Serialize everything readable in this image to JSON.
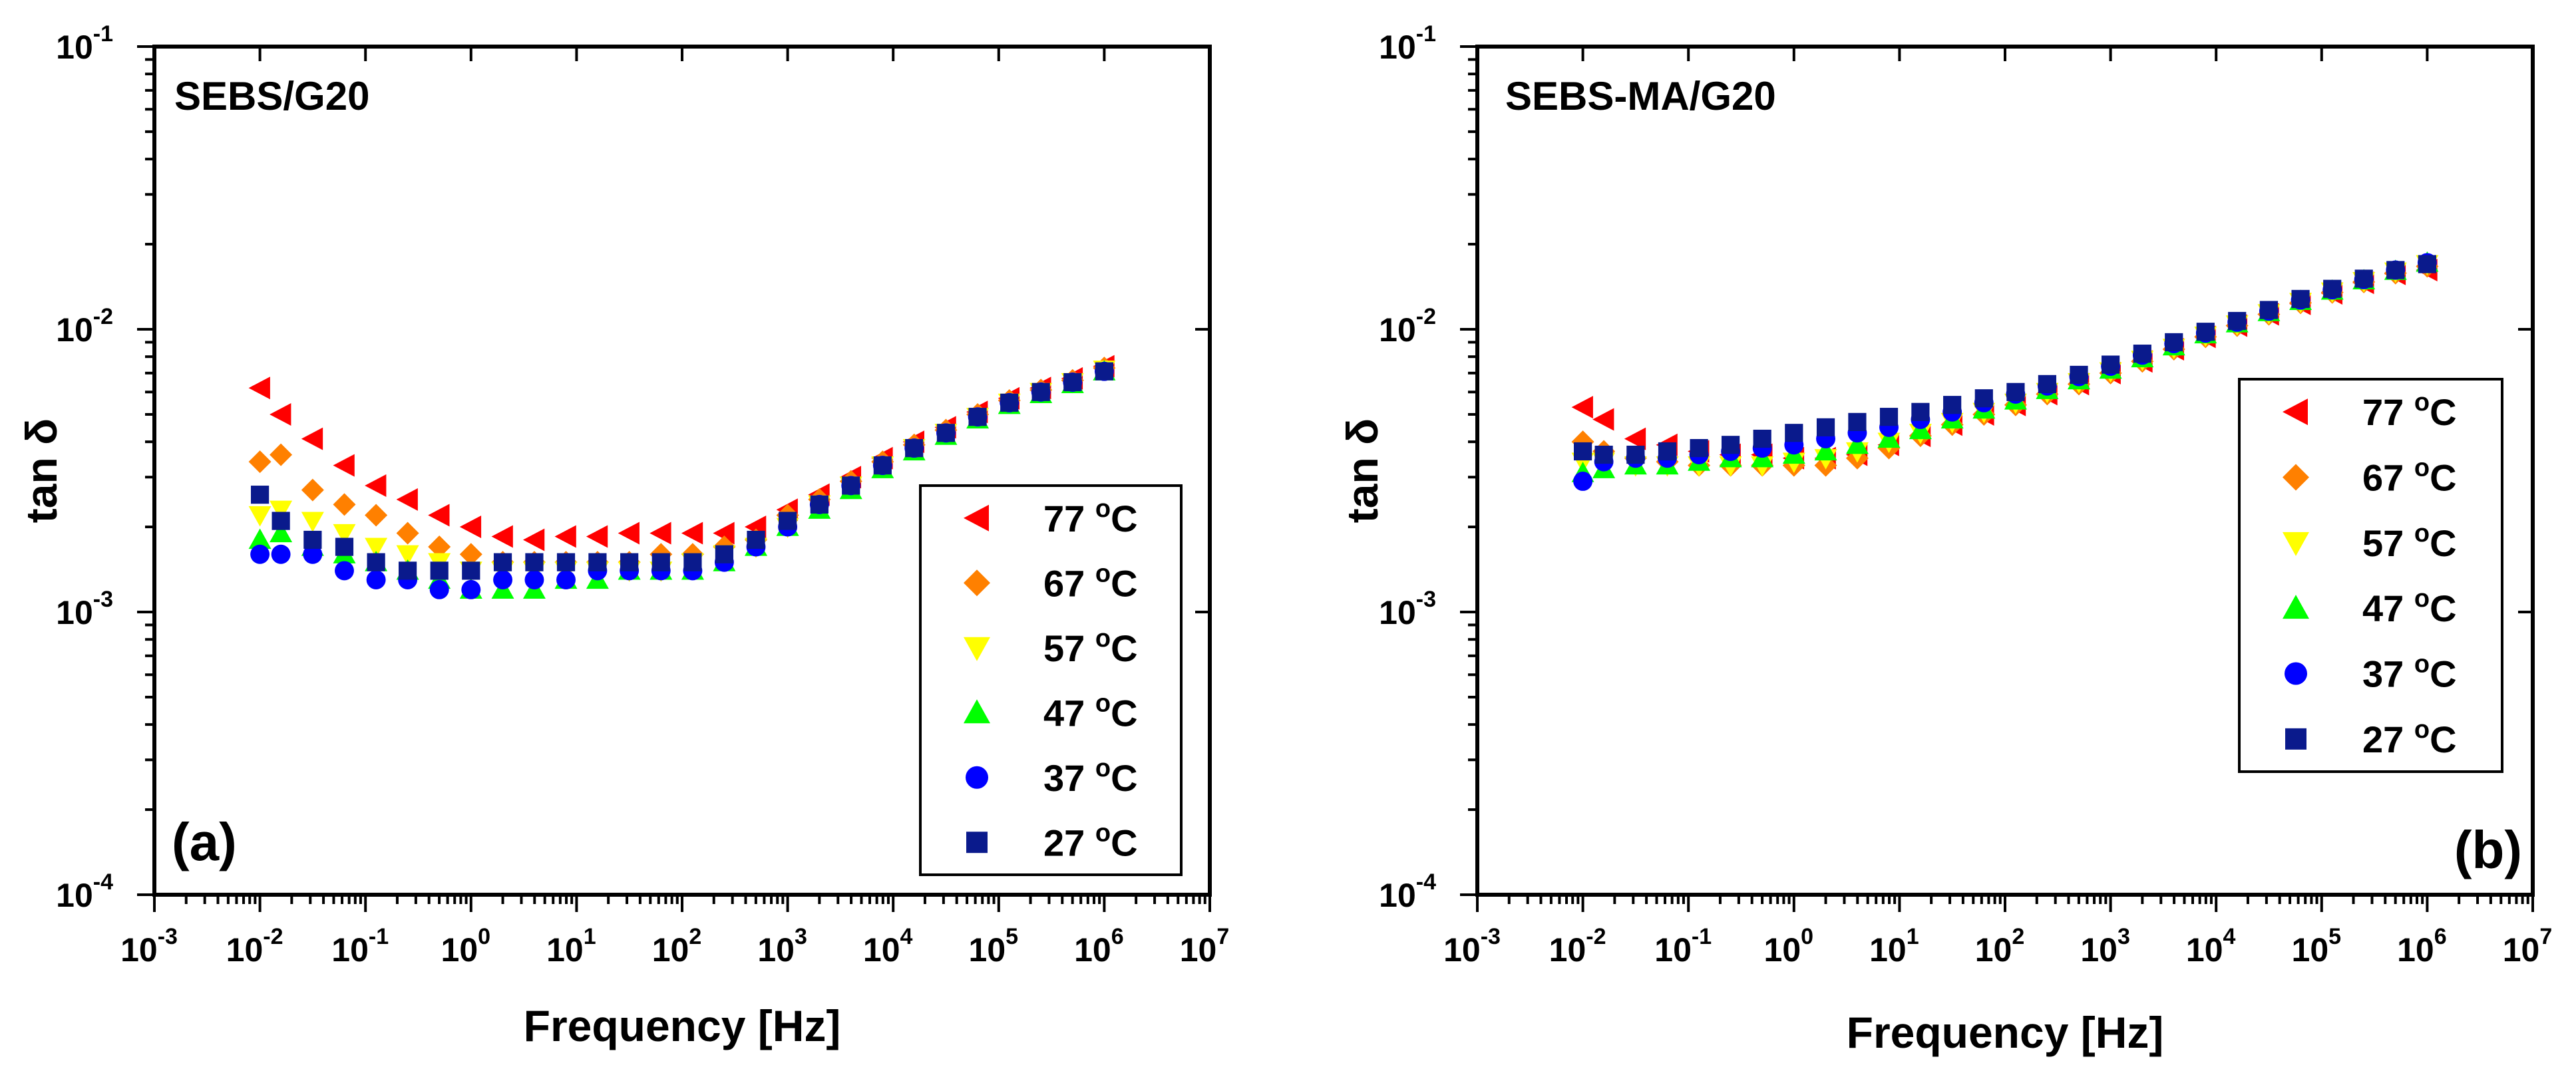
{
  "chart_data": [
    {
      "type": "scatter",
      "title": "SEBS/G20",
      "panel_label": "(a)",
      "xlabel": "Frequency [Hz]",
      "ylabel": "tan δ",
      "x_scale": "log",
      "y_scale": "log",
      "xlim": [
        0.001,
        10000000
      ],
      "ylim": [
        0.0001,
        0.1
      ],
      "x_ticks": [
        {
          "base": "10",
          "exp": "-3"
        },
        {
          "base": "10",
          "exp": "-2"
        },
        {
          "base": "10",
          "exp": "-1"
        },
        {
          "base": "10",
          "exp": "0"
        },
        {
          "base": "10",
          "exp": "1"
        },
        {
          "base": "10",
          "exp": "2"
        },
        {
          "base": "10",
          "exp": "3"
        },
        {
          "base": "10",
          "exp": "4"
        },
        {
          "base": "10",
          "exp": "5"
        },
        {
          "base": "10",
          "exp": "6"
        },
        {
          "base": "10",
          "exp": "7"
        }
      ],
      "y_ticks": [
        {
          "base": "10",
          "exp": "-4"
        },
        {
          "base": "10",
          "exp": "-3"
        },
        {
          "base": "10",
          "exp": "-2"
        },
        {
          "base": "10",
          "exp": "-1"
        }
      ],
      "legend_position": "bottom-right",
      "series": [
        {
          "name": "77 °C",
          "temp": "77",
          "unit": "°C",
          "color": "#ff0000",
          "marker": "triangle-left",
          "x": [
            0.01,
            0.0158,
            0.0316,
            0.0631,
            0.126,
            0.251,
            0.501,
            1,
            2,
            3.98,
            7.94,
            15.8,
            31.6,
            63.1,
            126,
            251,
            501,
            1000,
            2000,
            3980,
            7940,
            15800,
            31600,
            63100,
            126000,
            251000,
            501000,
            1000000
          ],
          "y": [
            0.0062,
            0.005,
            0.0041,
            0.0033,
            0.0028,
            0.0025,
            0.0022,
            0.002,
            0.00185,
            0.0018,
            0.00185,
            0.00185,
            0.0019,
            0.0019,
            0.0019,
            0.0019,
            0.002,
            0.0023,
            0.0026,
            0.003,
            0.0035,
            0.004,
            0.0045,
            0.0051,
            0.0057,
            0.0062,
            0.0067,
            0.0074
          ]
        },
        {
          "name": "67 °C",
          "temp": "67",
          "unit": "°C",
          "color": "#ff8000",
          "marker": "diamond",
          "x": [
            0.01,
            0.0158,
            0.0316,
            0.0631,
            0.126,
            0.251,
            0.501,
            1,
            2,
            3.98,
            7.94,
            15.8,
            31.6,
            63.1,
            126,
            251,
            501,
            1000,
            2000,
            3980,
            7940,
            15800,
            31600,
            63100,
            126000,
            251000,
            501000,
            1000000
          ],
          "y": [
            0.0034,
            0.0036,
            0.0027,
            0.0024,
            0.0022,
            0.0019,
            0.0017,
            0.0016,
            0.0015,
            0.0015,
            0.0015,
            0.0015,
            0.0015,
            0.0016,
            0.0016,
            0.0017,
            0.0018,
            0.0022,
            0.0025,
            0.0029,
            0.0034,
            0.0039,
            0.0044,
            0.005,
            0.0056,
            0.0061,
            0.0066,
            0.0073
          ]
        },
        {
          "name": "57 °C",
          "temp": "57",
          "unit": "°C",
          "color": "#ffff00",
          "marker": "triangle-down",
          "x": [
            0.01,
            0.0158,
            0.0316,
            0.0631,
            0.126,
            0.251,
            0.501,
            1,
            2,
            3.98,
            7.94,
            15.8,
            31.6,
            63.1,
            126,
            251,
            501,
            1000,
            2000,
            3980,
            7940,
            15800,
            31600,
            63100,
            126000,
            251000,
            501000,
            1000000
          ],
          "y": [
            0.0022,
            0.0023,
            0.0021,
            0.0019,
            0.0017,
            0.0016,
            0.0015,
            0.0014,
            0.0014,
            0.0014,
            0.0014,
            0.0014,
            0.0014,
            0.0014,
            0.0015,
            0.0016,
            0.0017,
            0.002,
            0.0024,
            0.0028,
            0.0033,
            0.0038,
            0.0043,
            0.0049,
            0.0055,
            0.006,
            0.0065,
            0.0072
          ]
        },
        {
          "name": "47 °C",
          "temp": "47",
          "unit": "°C",
          "color": "#00ff00",
          "marker": "triangle-up",
          "x": [
            0.01,
            0.0158,
            0.0316,
            0.0631,
            0.126,
            0.251,
            0.501,
            1,
            2,
            3.98,
            7.94,
            15.8,
            31.6,
            63.1,
            126,
            251,
            501,
            1000,
            2000,
            3980,
            7940,
            15800,
            31600,
            63100,
            126000,
            251000,
            501000,
            1000000
          ],
          "y": [
            0.0018,
            0.0019,
            0.0017,
            0.0016,
            0.0015,
            0.0014,
            0.0013,
            0.0012,
            0.0012,
            0.0012,
            0.0013,
            0.0013,
            0.0014,
            0.0014,
            0.0014,
            0.0015,
            0.0017,
            0.002,
            0.0023,
            0.0027,
            0.0032,
            0.0037,
            0.0042,
            0.0048,
            0.0054,
            0.0059,
            0.0064,
            0.0071
          ]
        },
        {
          "name": "37 °C",
          "temp": "37",
          "unit": "°C",
          "color": "#0000ff",
          "marker": "circle",
          "x": [
            0.01,
            0.0158,
            0.0316,
            0.0631,
            0.126,
            0.251,
            0.501,
            1,
            2,
            3.98,
            7.94,
            15.8,
            31.6,
            63.1,
            126,
            251,
            501,
            1000,
            2000,
            3980,
            7940,
            15800,
            31600,
            63100,
            126000,
            251000,
            501000,
            1000000
          ],
          "y": [
            0.0016,
            0.0016,
            0.0016,
            0.0014,
            0.0013,
            0.0013,
            0.0012,
            0.0012,
            0.0013,
            0.0013,
            0.0013,
            0.0014,
            0.0014,
            0.0014,
            0.0014,
            0.0015,
            0.0017,
            0.002,
            0.0024,
            0.0028,
            0.0033,
            0.0038,
            0.0043,
            0.0049,
            0.0055,
            0.006,
            0.0065,
            0.0071
          ]
        },
        {
          "name": "27 °C",
          "temp": "27",
          "unit": "°C",
          "color": "#0a1a8c",
          "marker": "square",
          "x": [
            0.01,
            0.0158,
            0.0316,
            0.0631,
            0.126,
            0.251,
            0.501,
            1,
            2,
            3.98,
            7.94,
            15.8,
            31.6,
            63.1,
            126,
            251,
            501,
            1000,
            2000,
            3980,
            7940,
            15800,
            31600,
            63100,
            126000,
            251000,
            501000,
            1000000
          ],
          "y": [
            0.0026,
            0.0021,
            0.0018,
            0.0017,
            0.0015,
            0.0014,
            0.0014,
            0.0014,
            0.0015,
            0.0015,
            0.0015,
            0.0015,
            0.0015,
            0.0015,
            0.0015,
            0.0016,
            0.0018,
            0.0021,
            0.0024,
            0.0028,
            0.0033,
            0.0038,
            0.0043,
            0.0049,
            0.0055,
            0.006,
            0.0065,
            0.0071
          ]
        }
      ]
    },
    {
      "type": "scatter",
      "title": "SEBS-MA/G20",
      "panel_label": "(b)",
      "xlabel": "Frequency [Hz]",
      "ylabel": "tan δ",
      "x_scale": "log",
      "y_scale": "log",
      "xlim": [
        0.001,
        10000000
      ],
      "ylim": [
        0.0001,
        0.1
      ],
      "x_ticks": [
        {
          "base": "10",
          "exp": "-3"
        },
        {
          "base": "10",
          "exp": "-2"
        },
        {
          "base": "10",
          "exp": "-1"
        },
        {
          "base": "10",
          "exp": "0"
        },
        {
          "base": "10",
          "exp": "1"
        },
        {
          "base": "10",
          "exp": "2"
        },
        {
          "base": "10",
          "exp": "3"
        },
        {
          "base": "10",
          "exp": "4"
        },
        {
          "base": "10",
          "exp": "5"
        },
        {
          "base": "10",
          "exp": "6"
        },
        {
          "base": "10",
          "exp": "7"
        }
      ],
      "y_ticks": [
        {
          "base": "10",
          "exp": "-4"
        },
        {
          "base": "10",
          "exp": "-3"
        },
        {
          "base": "10",
          "exp": "-2"
        },
        {
          "base": "10",
          "exp": "-1"
        }
      ],
      "legend_position": "right",
      "series": [
        {
          "name": "77 °C",
          "temp": "77",
          "unit": "°C",
          "color": "#ff0000",
          "marker": "triangle-left",
          "x": [
            0.01,
            0.0158,
            0.0316,
            0.0631,
            0.126,
            0.251,
            0.501,
            1,
            2,
            3.98,
            7.94,
            15.8,
            31.6,
            63.1,
            126,
            251,
            501,
            1000,
            2000,
            3980,
            7940,
            15800,
            31600,
            63100,
            126000,
            251000,
            501000,
            1000000
          ],
          "y": [
            0.0053,
            0.0048,
            0.0041,
            0.0039,
            0.0037,
            0.0036,
            0.0036,
            0.0035,
            0.0035,
            0.0036,
            0.0039,
            0.0042,
            0.0046,
            0.005,
            0.0054,
            0.0059,
            0.0064,
            0.007,
            0.0077,
            0.0085,
            0.0094,
            0.0103,
            0.0113,
            0.0123,
            0.0134,
            0.0146,
            0.0157,
            0.0162
          ]
        },
        {
          "name": "67 °C",
          "temp": "67",
          "unit": "°C",
          "color": "#ff8000",
          "marker": "diamond",
          "x": [
            0.01,
            0.0158,
            0.0316,
            0.0631,
            0.126,
            0.251,
            0.501,
            1,
            2,
            3.98,
            7.94,
            15.8,
            31.6,
            63.1,
            126,
            251,
            501,
            1000,
            2000,
            3980,
            7940,
            15800,
            31600,
            63100,
            126000,
            251000,
            501000,
            1000000
          ],
          "y": [
            0.004,
            0.0037,
            0.0035,
            0.0034,
            0.0033,
            0.0033,
            0.0033,
            0.0033,
            0.0033,
            0.0035,
            0.0038,
            0.0042,
            0.0046,
            0.005,
            0.0054,
            0.0059,
            0.0064,
            0.007,
            0.0077,
            0.0085,
            0.0094,
            0.0103,
            0.0113,
            0.0124,
            0.0135,
            0.0147,
            0.0158,
            0.0167
          ]
        },
        {
          "name": "57 °C",
          "temp": "57",
          "unit": "°C",
          "color": "#ffff00",
          "marker": "triangle-down",
          "x": [
            0.01,
            0.0158,
            0.0316,
            0.0631,
            0.126,
            0.251,
            0.501,
            1,
            2,
            3.98,
            7.94,
            15.8,
            31.6,
            63.1,
            126,
            251,
            501,
            1000,
            2000,
            3980,
            7940,
            15800,
            31600,
            63100,
            126000,
            251000,
            501000,
            1000000
          ],
          "y": [
            0.0034,
            0.0034,
            0.0033,
            0.0033,
            0.0033,
            0.0033,
            0.0033,
            0.0034,
            0.0035,
            0.0037,
            0.004,
            0.0043,
            0.0047,
            0.0051,
            0.0055,
            0.006,
            0.0065,
            0.0071,
            0.0078,
            0.0086,
            0.0095,
            0.0104,
            0.0114,
            0.0125,
            0.0136,
            0.0148,
            0.016,
            0.017
          ]
        },
        {
          "name": "47 °C",
          "temp": "47",
          "unit": "°C",
          "color": "#00ff00",
          "marker": "triangle-up",
          "x": [
            0.01,
            0.0158,
            0.0316,
            0.0631,
            0.126,
            0.251,
            0.501,
            1,
            2,
            3.98,
            7.94,
            15.8,
            31.6,
            63.1,
            126,
            251,
            501,
            1000,
            2000,
            3980,
            7940,
            15800,
            31600,
            63100,
            126000,
            251000,
            501000,
            1000000
          ],
          "y": [
            0.0031,
            0.0032,
            0.0033,
            0.0033,
            0.0034,
            0.0035,
            0.0035,
            0.0036,
            0.0037,
            0.0039,
            0.0041,
            0.0044,
            0.0048,
            0.0052,
            0.0056,
            0.0061,
            0.0066,
            0.0072,
            0.0079,
            0.0087,
            0.0096,
            0.0105,
            0.0115,
            0.0126,
            0.0137,
            0.0149,
            0.0161,
            0.0172
          ]
        },
        {
          "name": "37 °C",
          "temp": "37",
          "unit": "°C",
          "color": "#0000ff",
          "marker": "circle",
          "x": [
            0.01,
            0.0158,
            0.0316,
            0.0631,
            0.126,
            0.251,
            0.501,
            1,
            2,
            3.98,
            7.94,
            15.8,
            31.6,
            63.1,
            126,
            251,
            501,
            1000,
            2000,
            3980,
            7940,
            15800,
            31600,
            63100,
            126000,
            251000,
            501000,
            1000000
          ],
          "y": [
            0.0029,
            0.0034,
            0.0035,
            0.0035,
            0.0036,
            0.0037,
            0.0038,
            0.0039,
            0.0041,
            0.0043,
            0.0045,
            0.0048,
            0.0051,
            0.0055,
            0.0059,
            0.0063,
            0.0068,
            0.0074,
            0.0081,
            0.0089,
            0.0097,
            0.0106,
            0.0116,
            0.0127,
            0.0138,
            0.015,
            0.0162,
            0.0172
          ]
        },
        {
          "name": "27 °C",
          "temp": "27",
          "unit": "°C",
          "color": "#0a1a8c",
          "marker": "square",
          "x": [
            0.01,
            0.0158,
            0.0316,
            0.0631,
            0.126,
            0.251,
            0.501,
            1,
            2,
            3.98,
            7.94,
            15.8,
            31.6,
            63.1,
            126,
            251,
            501,
            1000,
            2000,
            3980,
            7940,
            15800,
            31600,
            63100,
            126000,
            251000,
            501000,
            1000000
          ],
          "y": [
            0.0037,
            0.0036,
            0.0036,
            0.0037,
            0.0038,
            0.0039,
            0.0041,
            0.0043,
            0.0045,
            0.0047,
            0.0049,
            0.0051,
            0.0054,
            0.0057,
            0.006,
            0.0064,
            0.0069,
            0.0075,
            0.0082,
            0.009,
            0.0098,
            0.0107,
            0.0117,
            0.0128,
            0.0139,
            0.0151,
            0.0162,
            0.017
          ]
        }
      ]
    }
  ]
}
